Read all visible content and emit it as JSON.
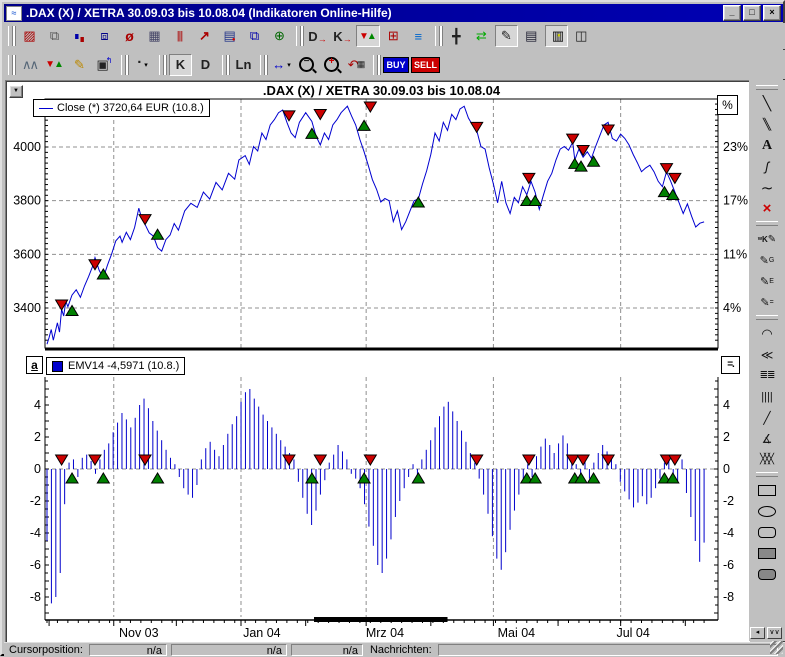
{
  "window": {
    "title": ".DAX (X) / XETRA 30.09.03 bis 10.08.04 (Indikatoren Online-Hilfe)",
    "controls": [
      "minimize-button",
      "maximize-button",
      "close-button"
    ]
  },
  "colors": {
    "title_bar": "#0000a8",
    "price_line": "#0000d0",
    "bars": "#0000cc",
    "sell_marker": "#cc0000",
    "buy_marker": "#008000",
    "grid": "#909090"
  },
  "toolbars": {
    "row1": [
      [
        {
          "name": "new-chart-button"
        },
        {
          "name": "copy-chart-button"
        },
        {
          "name": "quote-squares-button"
        },
        {
          "name": "structure-button"
        },
        {
          "name": "lasso-button"
        },
        {
          "name": "quote-board-button"
        },
        {
          "name": "histogram-button"
        },
        {
          "name": "line-chart-button"
        },
        {
          "name": "news-button"
        },
        {
          "name": "windows-button"
        },
        {
          "name": "world-button"
        }
      ],
      [
        {
          "name": "d-chart-button",
          "label": "D"
        },
        {
          "name": "k-chart-button",
          "label": "K"
        },
        {
          "name": "signals-button",
          "pressed": true
        },
        {
          "name": "matrix-chart-button"
        },
        {
          "name": "levels-button"
        }
      ],
      [
        {
          "name": "crosshair-button"
        },
        {
          "name": "shift-arrows-button"
        },
        {
          "name": "draw-pencil-button",
          "pressed": true
        },
        {
          "name": "note-button"
        },
        {
          "name": "legend-button",
          "pressed": true
        },
        {
          "name": "layout-button"
        }
      ]
    ],
    "row2": [
      [
        {
          "name": "zigzag-button"
        },
        {
          "name": "signal-triangles-button"
        },
        {
          "name": "marker-pen-button"
        },
        {
          "name": "properties-button"
        }
      ],
      [
        {
          "name": "period-dot-button",
          "dropdown": true
        }
      ],
      [
        {
          "name": "kurs-k-button",
          "label": "K",
          "pressed": true
        },
        {
          "name": "kurs-d-button",
          "label": "D"
        }
      ],
      [
        {
          "name": "ln-scale-button",
          "label": "Ln"
        }
      ],
      [
        {
          "name": "span-select-button",
          "dropdown": true
        },
        {
          "name": "zoom-out-button"
        },
        {
          "name": "zoom-in-button"
        },
        {
          "name": "chart-back-button"
        }
      ],
      [
        {
          "name": "buy-button",
          "label": "BUY"
        },
        {
          "name": "sell-button",
          "label": "SELL"
        }
      ]
    ]
  },
  "right_toolbar": {
    "sections": [
      [
        "trend-line-tool",
        "parallel-lines-tool",
        "text-tool",
        "squiggle-tool",
        "wave-tool",
        "delete-drawing-tool"
      ],
      [
        "mk-pencil-tool",
        "g-pencil-tool",
        "e-pencil-tool",
        "lines-pencil-tool"
      ],
      [
        "fib-arcs-tool",
        "fan-lines-tool",
        "retracement-tool",
        "vertical-lines-tool",
        "diagonal-line-tool",
        "point-fan-tool",
        "crosshatch-tool"
      ],
      [
        "rectangle-tool",
        "ellipse-tool",
        "rounded-rect-tool",
        "filled-rect-tool",
        "filled-rounded-rect-tool"
      ]
    ],
    "scroll_buttons": [
      "scroll-left-button",
      "collapse-toolbar-button"
    ]
  },
  "chart": {
    "title": ".DAX (X) / XETRA 30.09.03 bis 10.08.04",
    "close_legend": "Close (*) 3720,64 EUR (10.8.)",
    "percent_symbol": "%",
    "collapse_glyph": "▼"
  },
  "indicator": {
    "legend": "EMV14 -4,5971 (10.8.)",
    "a_button_label": "a",
    "menu_button_label": "=."
  },
  "status_bar": {
    "cursor_label": "Cursorposition:",
    "fields": [
      "n/a",
      "n/a",
      "n/a"
    ],
    "messages_label": "Nachrichten:",
    "messages_value": ""
  },
  "chart_data": [
    {
      "type": "line",
      "title": ".DAX (X) / XETRA 30.09.03 bis 10.08.04",
      "series_name": "Close",
      "unit": "EUR",
      "last_value_label": "3720,64",
      "last_date_label": "10.8.",
      "x_axis": {
        "start_label": "30.09.03",
        "end_label": "10.08.04",
        "month_start_days": [
          1,
          32,
          62,
          93,
          124,
          153,
          184,
          214,
          245,
          275,
          306
        ],
        "gridline_days": [
          32,
          93,
          153,
          214,
          275
        ],
        "tick_labels": [
          "Nov 03",
          "Jan 04",
          "Mrz 04",
          "Mai 04",
          "Jul 04"
        ],
        "tick_label_days": [
          44,
          103,
          162,
          225,
          281
        ],
        "total_days": 315
      },
      "y_axis": {
        "ticks": [
          4000,
          3800,
          3600,
          3400
        ],
        "percent_labels": [
          "23%",
          "17%",
          "11%",
          "4%"
        ],
        "range": [
          3251,
          4179
        ]
      },
      "points": [
        [
          0,
          3265
        ],
        [
          1,
          3290
        ],
        [
          2,
          3320
        ],
        [
          3,
          3280
        ],
        [
          5,
          3345
        ],
        [
          6,
          3310
        ],
        [
          7,
          3395
        ],
        [
          8,
          3370
        ],
        [
          9,
          3425
        ],
        [
          10,
          3405
        ],
        [
          12,
          3448
        ],
        [
          14,
          3468
        ],
        [
          16,
          3440
        ],
        [
          18,
          3482
        ],
        [
          20,
          3518
        ],
        [
          22,
          3558
        ],
        [
          23,
          3588
        ],
        [
          25,
          3540
        ],
        [
          27,
          3512
        ],
        [
          29,
          3560
        ],
        [
          31,
          3602
        ],
        [
          33,
          3650
        ],
        [
          35,
          3668
        ],
        [
          36,
          3645
        ],
        [
          38,
          3682
        ],
        [
          40,
          3655
        ],
        [
          42,
          3700
        ],
        [
          44,
          3772
        ],
        [
          45,
          3745
        ],
        [
          47,
          3712
        ],
        [
          49,
          3680
        ],
        [
          51,
          3668
        ],
        [
          53,
          3625
        ],
        [
          55,
          3612
        ],
        [
          57,
          3655
        ],
        [
          59,
          3672
        ],
        [
          61,
          3715
        ],
        [
          63,
          3690
        ],
        [
          66,
          3762
        ],
        [
          69,
          3790
        ],
        [
          72,
          3775
        ],
        [
          75,
          3832
        ],
        [
          78,
          3806
        ],
        [
          81,
          3868
        ],
        [
          84,
          3840
        ],
        [
          87,
          3902
        ],
        [
          90,
          3880
        ],
        [
          92,
          3952
        ],
        [
          95,
          3968
        ],
        [
          97,
          3935
        ],
        [
          99,
          4002
        ],
        [
          101,
          3985
        ],
        [
          103,
          4052
        ],
        [
          105,
          4028
        ],
        [
          107,
          4082
        ],
        [
          109,
          4102
        ],
        [
          111,
          4128
        ],
        [
          113,
          4138
        ],
        [
          115,
          4092
        ],
        [
          117,
          4052
        ],
        [
          119,
          4035
        ],
        [
          121,
          4092
        ],
        [
          124,
          4128
        ],
        [
          127,
          4095
        ],
        [
          129,
          4040
        ],
        [
          131,
          4008
        ],
        [
          133,
          4052
        ],
        [
          135,
          4028
        ],
        [
          137,
          4082
        ],
        [
          139,
          4102
        ],
        [
          141,
          4128
        ],
        [
          144,
          4152
        ],
        [
          146,
          4115
        ],
        [
          148,
          4082
        ],
        [
          150,
          4028
        ],
        [
          152,
          3982
        ],
        [
          154,
          3932
        ],
        [
          156,
          3878
        ],
        [
          158,
          3842
        ],
        [
          160,
          3795
        ],
        [
          162,
          3808
        ],
        [
          164,
          3800
        ],
        [
          166,
          3722
        ],
        [
          168,
          3762
        ],
        [
          170,
          3692
        ],
        [
          172,
          3722
        ],
        [
          174,
          3762
        ],
        [
          176,
          3800
        ],
        [
          178,
          3806
        ],
        [
          180,
          3862
        ],
        [
          182,
          3912
        ],
        [
          184,
          3972
        ],
        [
          186,
          4052
        ],
        [
          188,
          4022
        ],
        [
          190,
          4092
        ],
        [
          192,
          4062
        ],
        [
          194,
          4122
        ],
        [
          196,
          4102
        ],
        [
          198,
          4142
        ],
        [
          200,
          4152
        ],
        [
          202,
          4108
        ],
        [
          204,
          4082
        ],
        [
          206,
          4062
        ],
        [
          208,
          4002
        ],
        [
          210,
          3992
        ],
        [
          212,
          3922
        ],
        [
          214,
          3862
        ],
        [
          216,
          3792
        ],
        [
          218,
          3872
        ],
        [
          220,
          3792
        ],
        [
          222,
          3752
        ],
        [
          224,
          3812
        ],
        [
          226,
          3792
        ],
        [
          228,
          3852
        ],
        [
          230,
          3822
        ],
        [
          232,
          3872
        ],
        [
          234,
          3832
        ],
        [
          236,
          3768
        ],
        [
          238,
          3822
        ],
        [
          240,
          3872
        ],
        [
          242,
          3902
        ],
        [
          244,
          3952
        ],
        [
          246,
          3992
        ],
        [
          248,
          4002
        ],
        [
          250,
          3988
        ],
        [
          252,
          4018
        ],
        [
          253,
          3952
        ],
        [
          255,
          3992
        ],
        [
          257,
          3962
        ],
        [
          259,
          3982
        ],
        [
          261,
          3958
        ],
        [
          263,
          4002
        ],
        [
          265,
          4042
        ],
        [
          267,
          4082
        ],
        [
          269,
          4092
        ],
        [
          271,
          4032
        ],
        [
          273,
          4022
        ],
        [
          275,
          4048
        ],
        [
          277,
          4032
        ],
        [
          279,
          4008
        ],
        [
          281,
          3972
        ],
        [
          283,
          3942
        ],
        [
          285,
          3908
        ],
        [
          287,
          3922
        ],
        [
          289,
          3932
        ],
        [
          291,
          3908
        ],
        [
          293,
          3872
        ],
        [
          295,
          3852
        ],
        [
          297,
          3908
        ],
        [
          299,
          3872
        ],
        [
          301,
          3832
        ],
        [
          303,
          3792
        ],
        [
          305,
          3752
        ],
        [
          307,
          3788
        ],
        [
          309,
          3742
        ],
        [
          311,
          3702
        ],
        [
          313,
          3716
        ],
        [
          315,
          3721
        ]
      ],
      "signals": {
        "sell": [
          [
            7,
            3400
          ],
          [
            23,
            3550
          ],
          [
            47,
            3718
          ],
          [
            116,
            4105
          ],
          [
            131,
            4110
          ],
          [
            155,
            4138
          ],
          [
            206,
            4062
          ],
          [
            231,
            3872
          ],
          [
            252,
            4018
          ],
          [
            257,
            3976
          ],
          [
            269,
            4052
          ],
          [
            297,
            3908
          ],
          [
            301,
            3872
          ]
        ],
        "buy": [
          [
            12,
            3402
          ],
          [
            27,
            3538
          ],
          [
            53,
            3686
          ],
          [
            127,
            4062
          ],
          [
            152,
            4092
          ],
          [
            178,
            3806
          ],
          [
            230,
            3812
          ],
          [
            234,
            3812
          ],
          [
            253,
            3950
          ],
          [
            256,
            3940
          ],
          [
            262,
            3958
          ],
          [
            296,
            3845
          ],
          [
            300,
            3834
          ]
        ]
      }
    },
    {
      "type": "bar",
      "series_name": "EMV14",
      "last_value_label": "-4,5971",
      "last_date_label": "10.8.",
      "y_axis": {
        "ticks": [
          4,
          2,
          0,
          -2,
          -4,
          -6,
          -8
        ],
        "range": [
          -9.5,
          6.8
        ]
      },
      "values": [
        -4.5,
        -8.4,
        -8.0,
        -6.5,
        -2.2,
        0.4,
        0.6,
        -0.5,
        0.7,
        0.9,
        0.5,
        -0.3,
        0.6,
        1.2,
        1.6,
        2.3,
        2.9,
        3.5,
        3.1,
        2.6,
        3.2,
        4.0,
        4.4,
        3.8,
        3.0,
        2.4,
        1.8,
        1.2,
        0.7,
        0.3,
        -0.5,
        -1.2,
        -1.6,
        -1.8,
        -1.0,
        0.6,
        1.3,
        1.7,
        1.2,
        0.8,
        1.5,
        2.2,
        2.8,
        3.3,
        4.2,
        4.8,
        5.0,
        4.4,
        3.9,
        3.4,
        3.0,
        2.6,
        2.2,
        1.8,
        1.4,
        1.0,
        0.6,
        -0.8,
        -1.8,
        -2.8,
        -3.5,
        -2.6,
        -1.6,
        -0.7,
        0.4,
        0.9,
        1.5,
        1.1,
        0.6,
        -0.3,
        -0.6,
        -1.2,
        -2.2,
        -3.6,
        -4.8,
        -6.0,
        -6.5,
        -5.6,
        -4.4,
        -3.0,
        -2.0,
        -1.2,
        -0.5,
        0.3,
        -0.4,
        0.6,
        1.2,
        1.8,
        2.6,
        3.3,
        3.9,
        4.2,
        3.6,
        3.0,
        2.4,
        1.7,
        1.0,
        0.4,
        -0.6,
        -1.6,
        -2.8,
        -4.2,
        -5.6,
        -6.3,
        -5.2,
        -3.8,
        -2.6,
        -1.6,
        -0.8,
        0.3,
        -0.5,
        0.8,
        1.4,
        1.9,
        1.5,
        1.0,
        1.6,
        2.1,
        1.6,
        0.9,
        0.3,
        -0.4,
        0.5,
        -0.6,
        0.4,
        1.0,
        1.5,
        1.1,
        0.6,
        0.3,
        -0.8,
        -1.4,
        -1.9,
        -2.4,
        -2.1,
        -1.7,
        -2.2,
        -1.8,
        -1.2,
        -0.6,
        0.4,
        0.8,
        -0.4,
        -0.9,
        0.6,
        -1.5,
        -3.0,
        -4.5,
        -5.8,
        -4.6
      ],
      "scrollbar_thumb_day_range": [
        128,
        192
      ]
    }
  ]
}
